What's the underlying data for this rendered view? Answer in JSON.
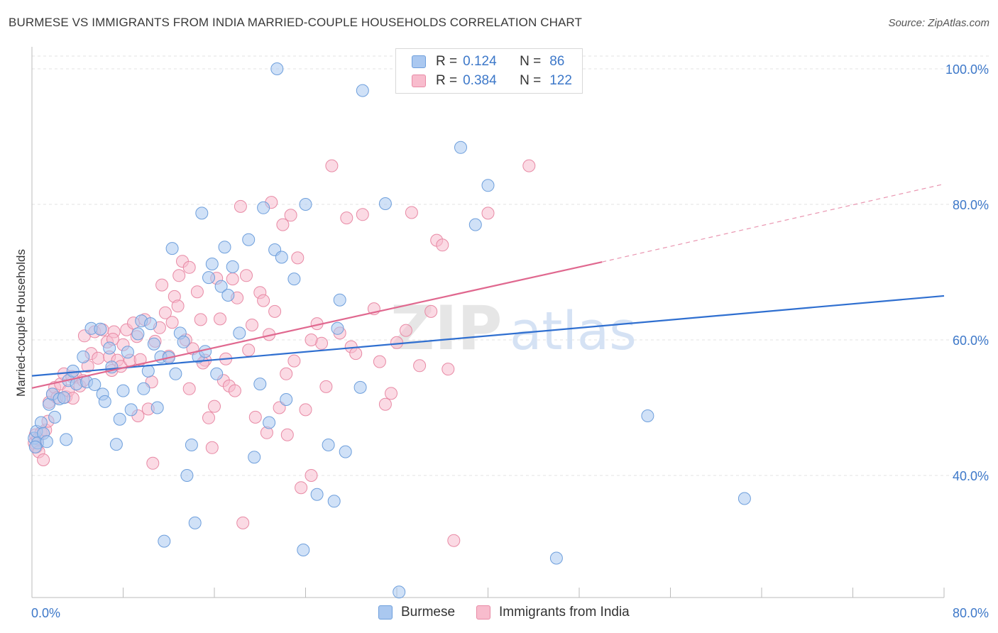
{
  "title": "BURMESE VS IMMIGRANTS FROM INDIA MARRIED-COUPLE HOUSEHOLDS CORRELATION CHART",
  "source": "Source: ZipAtlas.com",
  "colors": {
    "blue_fill": "#aac8f0",
    "blue_stroke": "#6e9fdc",
    "blue_line": "#2f6fd0",
    "pink_fill": "#f8bccd",
    "pink_stroke": "#e88aa5",
    "pink_line": "#e0688f",
    "tick_text": "#3d78c9",
    "grid": "#e3e3e3"
  },
  "legend": {
    "rows": [
      {
        "r_label": "R =",
        "r_value": "0.124",
        "n_label": "N =",
        "n_value": "86"
      },
      {
        "r_label": "R =",
        "r_value": "0.384",
        "n_label": "N =",
        "n_value": "122"
      }
    ]
  },
  "bottom_legend": {
    "items": [
      "Burmese",
      "Immigrants from India"
    ]
  },
  "chart_data": {
    "type": "scatter",
    "title": "BURMESE VS IMMIGRANTS FROM INDIA MARRIED-COUPLE HOUSEHOLDS CORRELATION CHART",
    "xlabel": "",
    "ylabel": "Married-couple Households",
    "xlim": [
      0,
      80
    ],
    "ylim": [
      20,
      102
    ],
    "x_tick_labels": [
      "0.0%",
      "80.0%"
    ],
    "y_ticks": [
      40,
      60,
      80,
      100
    ],
    "y_tick_labels": [
      "40.0%",
      "60.0%",
      "80.0%",
      "100.0%"
    ],
    "grid": true,
    "watermark": "ZIPatlas",
    "series": [
      {
        "name": "Burmese",
        "r": 0.124,
        "n": 86,
        "trend": {
          "x0": 0,
          "y0": 54.7,
          "x1": 80,
          "y1": 66.5
        },
        "points": [
          [
            0.2,
            45.5
          ],
          [
            0.4,
            46.5
          ],
          [
            0.5,
            44.8
          ],
          [
            0.8,
            47.8
          ],
          [
            1.0,
            46.2
          ],
          [
            1.3,
            45.0
          ],
          [
            1.5,
            50.5
          ],
          [
            1.8,
            52.0
          ],
          [
            2.0,
            48.6
          ],
          [
            2.4,
            51.3
          ],
          [
            2.8,
            51.5
          ],
          [
            3.0,
            45.3
          ],
          [
            3.2,
            54.0
          ],
          [
            3.6,
            55.4
          ],
          [
            3.9,
            53.5
          ],
          [
            4.5,
            57.5
          ],
          [
            4.8,
            53.8
          ],
          [
            5.2,
            61.7
          ],
          [
            5.5,
            53.4
          ],
          [
            6.0,
            61.6
          ],
          [
            6.2,
            52.0
          ],
          [
            6.4,
            50.9
          ],
          [
            6.8,
            58.8
          ],
          [
            7.0,
            56.0
          ],
          [
            7.4,
            44.6
          ],
          [
            7.7,
            48.3
          ],
          [
            8.0,
            52.5
          ],
          [
            8.4,
            58.2
          ],
          [
            8.7,
            49.7
          ],
          [
            9.3,
            60.9
          ],
          [
            9.6,
            62.8
          ],
          [
            9.8,
            52.8
          ],
          [
            10.2,
            55.4
          ],
          [
            10.4,
            62.4
          ],
          [
            10.7,
            59.4
          ],
          [
            11.0,
            50.0
          ],
          [
            11.3,
            57.5
          ],
          [
            11.6,
            30.3
          ],
          [
            12.0,
            57.4
          ],
          [
            12.3,
            73.5
          ],
          [
            12.6,
            55.0
          ],
          [
            13.0,
            61.0
          ],
          [
            13.3,
            59.7
          ],
          [
            13.6,
            40.0
          ],
          [
            14.0,
            44.5
          ],
          [
            14.3,
            33.0
          ],
          [
            14.6,
            57.5
          ],
          [
            14.9,
            78.7
          ],
          [
            15.2,
            58.3
          ],
          [
            15.5,
            69.2
          ],
          [
            15.8,
            71.2
          ],
          [
            16.2,
            55.0
          ],
          [
            16.6,
            67.9
          ],
          [
            16.9,
            73.7
          ],
          [
            17.2,
            66.6
          ],
          [
            17.6,
            70.8
          ],
          [
            18.2,
            61.0
          ],
          [
            19.0,
            74.8
          ],
          [
            19.5,
            42.7
          ],
          [
            20.0,
            53.5
          ],
          [
            20.3,
            79.5
          ],
          [
            20.8,
            47.8
          ],
          [
            21.3,
            73.3
          ],
          [
            21.9,
            72.2
          ],
          [
            22.3,
            51.2
          ],
          [
            23.0,
            69.0
          ],
          [
            24.0,
            80.0
          ],
          [
            23.8,
            29.0
          ],
          [
            25.0,
            37.2
          ],
          [
            26.0,
            44.5
          ],
          [
            26.5,
            36.2
          ],
          [
            26.8,
            61.7
          ],
          [
            27.0,
            65.9
          ],
          [
            21.5,
            100.0
          ],
          [
            27.5,
            43.5
          ],
          [
            28.8,
            53.0
          ],
          [
            29.0,
            96.8
          ],
          [
            31.0,
            80.1
          ],
          [
            32.2,
            22.8
          ],
          [
            37.6,
            88.4
          ],
          [
            38.9,
            77.0
          ],
          [
            40.0,
            82.8
          ],
          [
            46.0,
            27.8
          ],
          [
            54.0,
            48.8
          ],
          [
            62.5,
            36.6
          ],
          [
            0.3,
            44.2
          ]
        ]
      },
      {
        "name": "Immigrants from India",
        "r": 0.384,
        "n": 122,
        "trend": {
          "x0": 0,
          "y0": 52.9,
          "x1": 50,
          "y1": 71.5
        },
        "trend_dashed": {
          "x0": 50,
          "y0": 71.5,
          "x1": 80,
          "y1": 83.0
        },
        "points": [
          [
            0.2,
            44.8
          ],
          [
            0.3,
            46.0
          ],
          [
            0.4,
            44.2
          ],
          [
            0.5,
            45.4
          ],
          [
            0.6,
            43.5
          ],
          [
            0.8,
            46.3
          ],
          [
            1.0,
            42.3
          ],
          [
            1.2,
            46.7
          ],
          [
            1.4,
            48.0
          ],
          [
            1.5,
            50.8
          ],
          [
            1.8,
            52.0
          ],
          [
            2.0,
            53.0
          ],
          [
            2.2,
            51.5
          ],
          [
            2.5,
            53.5
          ],
          [
            2.8,
            55.0
          ],
          [
            3.0,
            51.6
          ],
          [
            3.2,
            52.5
          ],
          [
            3.6,
            51.4
          ],
          [
            3.9,
            54.5
          ],
          [
            4.2,
            53.2
          ],
          [
            4.5,
            54.0
          ],
          [
            4.6,
            60.6
          ],
          [
            4.9,
            56.1
          ],
          [
            5.2,
            58.0
          ],
          [
            5.5,
            61.2
          ],
          [
            5.8,
            57.3
          ],
          [
            6.2,
            61.5
          ],
          [
            6.6,
            59.7
          ],
          [
            6.8,
            57.5
          ],
          [
            7.0,
            55.5
          ],
          [
            7.2,
            61.2
          ],
          [
            7.5,
            57.0
          ],
          [
            7.8,
            56.1
          ],
          [
            8.0,
            59.3
          ],
          [
            8.3,
            61.5
          ],
          [
            8.6,
            57.0
          ],
          [
            8.9,
            62.5
          ],
          [
            9.2,
            60.5
          ],
          [
            9.5,
            57.1
          ],
          [
            9.9,
            63.0
          ],
          [
            10.2,
            49.8
          ],
          [
            10.5,
            53.8
          ],
          [
            10.8,
            59.8
          ],
          [
            11.2,
            61.8
          ],
          [
            11.4,
            68.1
          ],
          [
            11.7,
            64.0
          ],
          [
            12.0,
            57.6
          ],
          [
            12.3,
            62.6
          ],
          [
            12.5,
            66.4
          ],
          [
            12.9,
            69.5
          ],
          [
            13.2,
            71.6
          ],
          [
            13.5,
            60.0
          ],
          [
            13.8,
            70.7
          ],
          [
            14.1,
            58.7
          ],
          [
            14.5,
            67.1
          ],
          [
            14.8,
            63.0
          ],
          [
            15.2,
            57.0
          ],
          [
            15.5,
            48.5
          ],
          [
            15.8,
            44.1
          ],
          [
            16.2,
            69.1
          ],
          [
            16.5,
            63.1
          ],
          [
            16.8,
            54.0
          ],
          [
            17.0,
            57.2
          ],
          [
            17.3,
            53.2
          ],
          [
            17.6,
            69.0
          ],
          [
            18.0,
            66.2
          ],
          [
            18.3,
            79.7
          ],
          [
            18.5,
            33.0
          ],
          [
            19.0,
            58.5
          ],
          [
            19.3,
            62.2
          ],
          [
            19.6,
            48.6
          ],
          [
            20.0,
            67.0
          ],
          [
            20.3,
            65.8
          ],
          [
            20.6,
            46.3
          ],
          [
            21.0,
            80.3
          ],
          [
            21.3,
            64.2
          ],
          [
            21.7,
            50.0
          ],
          [
            22.0,
            77.0
          ],
          [
            22.4,
            46.0
          ],
          [
            22.7,
            78.4
          ],
          [
            23.0,
            56.9
          ],
          [
            23.3,
            72.1
          ],
          [
            23.6,
            38.2
          ],
          [
            24.0,
            49.7
          ],
          [
            24.5,
            40.0
          ],
          [
            25.0,
            62.4
          ],
          [
            25.4,
            59.5
          ],
          [
            25.8,
            53.1
          ],
          [
            26.3,
            85.7
          ],
          [
            27.0,
            61.0
          ],
          [
            27.6,
            78.0
          ],
          [
            28.0,
            59.0
          ],
          [
            28.4,
            58.0
          ],
          [
            29.0,
            78.5
          ],
          [
            30.0,
            64.6
          ],
          [
            30.5,
            56.8
          ],
          [
            31.0,
            50.5
          ],
          [
            31.5,
            52.1
          ],
          [
            32.0,
            59.6
          ],
          [
            32.8,
            61.4
          ],
          [
            33.3,
            78.8
          ],
          [
            34.0,
            56.2
          ],
          [
            35.0,
            64.2
          ],
          [
            35.5,
            74.7
          ],
          [
            36.0,
            74.0
          ],
          [
            36.5,
            55.7
          ],
          [
            37.0,
            30.4
          ],
          [
            40.0,
            78.7
          ],
          [
            43.6,
            85.7
          ],
          [
            13.8,
            52.8
          ],
          [
            10.6,
            41.8
          ],
          [
            15.0,
            56.6
          ],
          [
            12.8,
            65.0
          ],
          [
            17.8,
            52.5
          ],
          [
            20.8,
            60.8
          ],
          [
            18.8,
            69.5
          ],
          [
            24.5,
            60.0
          ],
          [
            9.3,
            48.8
          ],
          [
            7.1,
            60.1
          ],
          [
            3.5,
            54.6
          ],
          [
            16.0,
            50.2
          ],
          [
            22.3,
            55.0
          ]
        ]
      }
    ]
  }
}
